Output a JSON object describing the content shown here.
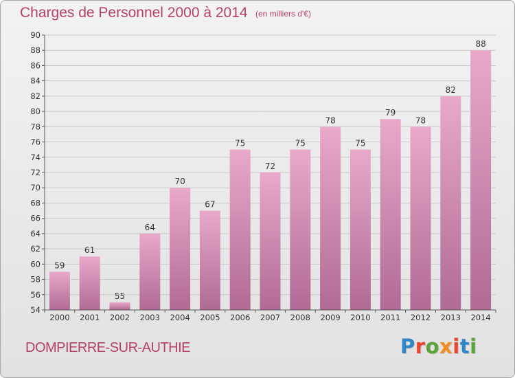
{
  "header": {
    "title": "Charges de Personnel 2000 à 2014",
    "subtitle": "(en milliers d'€)"
  },
  "footer": {
    "commune": "DOMPIERRE-SUR-AUTHIE",
    "brand": "Proxiti",
    "brand_colors": [
      "#2f86c8",
      "#e8442e",
      "#5ca33a",
      "#f28c1f",
      "#e8442e",
      "#2f86c8",
      "#5ca33a"
    ]
  },
  "colors": {
    "bar_top": "#e8a9cb",
    "bar_bottom": "#b06b94",
    "text": "#b5406c"
  },
  "chart_data": {
    "type": "bar",
    "title": "Charges de Personnel 2000 à 2014",
    "subtitle": "(en milliers d'€)",
    "categories": [
      "2000",
      "2001",
      "2002",
      "2003",
      "2004",
      "2005",
      "2006",
      "2007",
      "2008",
      "2009",
      "2010",
      "2011",
      "2012",
      "2013",
      "2014"
    ],
    "values": [
      59,
      61,
      55,
      64,
      70,
      67,
      75,
      72,
      75,
      78,
      75,
      79,
      78,
      82,
      88
    ],
    "ylim": [
      54,
      90
    ],
    "yticks": [
      54,
      56,
      58,
      60,
      62,
      64,
      66,
      68,
      70,
      72,
      74,
      76,
      78,
      80,
      82,
      84,
      86,
      88,
      90
    ],
    "grid": true,
    "data_labels": true
  }
}
